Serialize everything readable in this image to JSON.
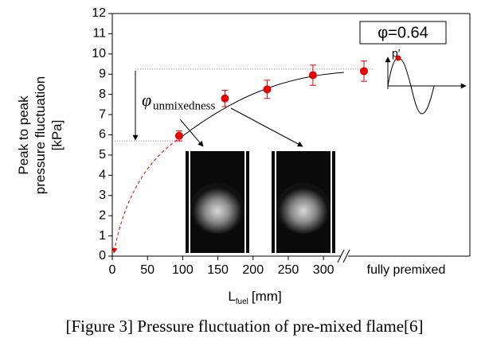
{
  "chart_data": {
    "type": "errorbar",
    "y_label": [
      "Peak to peak",
      "pressure fluctuation",
      "[kPa]"
    ],
    "x_label": {
      "main": "L",
      "subscript": "fuel",
      "unit": "[mm]"
    },
    "x": [
      95,
      160,
      220,
      285
    ],
    "values": [
      5.95,
      7.8,
      8.25,
      8.95
    ],
    "errors": [
      0.25,
      0.4,
      0.45,
      0.5
    ],
    "premixed": {
      "label": "fully premixed",
      "value": 9.15,
      "error": 0.5
    },
    "color": "#e60000",
    "xlim": [
      0,
      508
    ],
    "xticks": [
      0,
      50,
      100,
      150,
      200,
      250,
      300
    ],
    "ylim": [
      0,
      12
    ],
    "yticks": [
      0,
      1,
      2,
      3,
      4,
      5,
      6,
      7,
      8,
      9,
      10,
      11,
      12
    ],
    "reference_lines": [
      9.25,
      5.7
    ],
    "annotation": {
      "symbol": "φ",
      "subscript": "unmixedness"
    },
    "condition": "φ=0.64",
    "inset_label": "p′",
    "caption": "[Figure 3] Pressure fluctuation of pre-mixed flame[6]"
  }
}
